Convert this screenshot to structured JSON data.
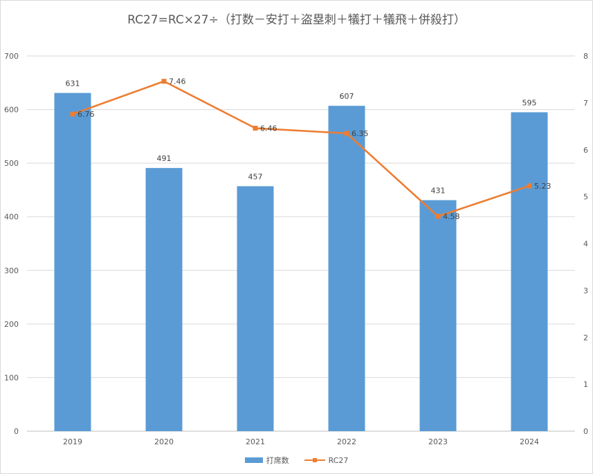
{
  "chart_data": {
    "type": "bar+line",
    "title": "RC27=RC×27÷（打数－安打＋盗塁刺＋犠打＋犠飛＋併殺打）",
    "categories": [
      "2019",
      "2020",
      "2021",
      "2022",
      "2023",
      "2024"
    ],
    "series": [
      {
        "name": "打席数",
        "type": "bar",
        "axis": "left",
        "values": [
          631,
          491,
          457,
          607,
          431,
          595
        ],
        "color": "#5b9bd5"
      },
      {
        "name": "RC27",
        "type": "line",
        "axis": "right",
        "values": [
          6.76,
          7.46,
          6.46,
          6.35,
          4.58,
          5.23
        ],
        "color": "#ed7d31"
      }
    ],
    "y_left": {
      "min": 0,
      "max": 700,
      "step": 100,
      "ticks": [
        "0",
        "100",
        "200",
        "300",
        "400",
        "500",
        "600",
        "700"
      ]
    },
    "y_right": {
      "min": 0,
      "max": 8,
      "step": 1,
      "ticks": [
        "0",
        "1",
        "2",
        "3",
        "4",
        "5",
        "6",
        "7",
        "8"
      ]
    },
    "bar_labels": [
      "631",
      "491",
      "457",
      "607",
      "431",
      "595"
    ],
    "line_labels": [
      "6.76",
      "7.46",
      "6.46",
      "6.35",
      "4.58",
      "5.23"
    ],
    "grid": true,
    "legend": "bottom"
  }
}
